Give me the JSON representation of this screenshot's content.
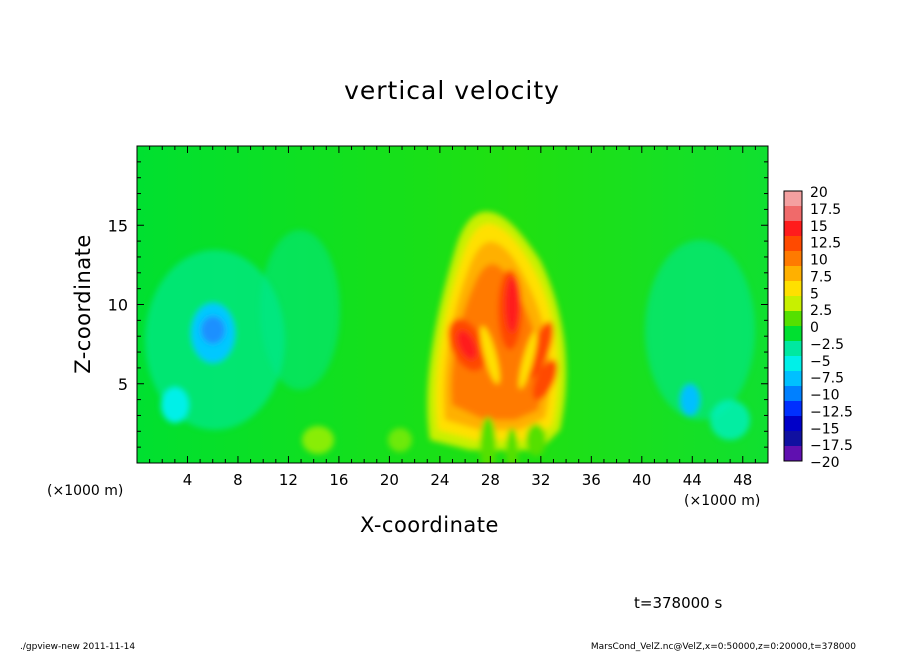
{
  "chart_data": {
    "type": "heatmap",
    "title": "vertical velocity",
    "xlabel": "X-coordinate",
    "ylabel": "Z-coordinate",
    "x_unit": "(×1000 m)",
    "x_unit_right": "(×1000 m)",
    "xlim": [
      0,
      50
    ],
    "ylim": [
      0,
      20
    ],
    "x_ticks": [
      4,
      8,
      12,
      16,
      20,
      24,
      28,
      32,
      36,
      40,
      44,
      48
    ],
    "y_ticks": [
      5,
      10,
      15
    ],
    "colorbar": {
      "levels": [
        20,
        17.5,
        15,
        12.5,
        10,
        7.5,
        5,
        2.5,
        0,
        -2.5,
        -5,
        -7.5,
        -10,
        -12.5,
        -15,
        -17.5,
        -20
      ],
      "colors": [
        "#f4a0a0",
        "#f06a6a",
        "#ff1c1c",
        "#ff4a00",
        "#ff7a00",
        "#ffb000",
        "#ffe000",
        "#c8f000",
        "#55e000",
        "#00e030",
        "#00e8a0",
        "#00f0e8",
        "#00c0ff",
        "#0080ff",
        "#0030ff",
        "#0000c8",
        "#1010a0",
        "#6010b0"
      ]
    },
    "features": [
      {
        "x": 29.5,
        "z": 9,
        "value": 15,
        "label": "updraft core"
      },
      {
        "x": 26,
        "z": 7.5,
        "value": 15,
        "label": "updraft lobe"
      },
      {
        "x": 32.5,
        "z": 6,
        "value": 12.5,
        "label": "updraft lobe"
      },
      {
        "x": 6,
        "z": 8.5,
        "value": -7.5,
        "label": "downdraft"
      },
      {
        "x": 43.5,
        "z": 4,
        "value": -7.5,
        "label": "downdraft"
      }
    ]
  },
  "time_label": "t=378000 s",
  "footer_left": "./gpview-new  2011-11-14",
  "footer_right": "MarsCond_VelZ.nc@VelZ,x=0:50000,z=0:20000,t=378000"
}
